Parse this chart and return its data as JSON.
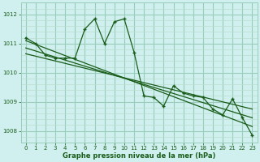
{
  "title": "Graphe pression niveau de la mer (hPa)",
  "bg_color": "#cff0ee",
  "grid_major_color": "#99ccbb",
  "grid_minor_color": "#bbddcc",
  "line_color": "#1a5c1a",
  "xlim": [
    -0.5,
    23.5
  ],
  "ylim": [
    1007.6,
    1012.4
  ],
  "yticks": [
    1008,
    1009,
    1010,
    1011,
    1012
  ],
  "yminor_step": 0.2,
  "xticks": [
    0,
    1,
    2,
    3,
    4,
    5,
    6,
    7,
    8,
    9,
    10,
    11,
    12,
    13,
    14,
    15,
    16,
    17,
    18,
    19,
    20,
    21,
    22,
    23
  ],
  "series1": [
    1011.2,
    1011.0,
    1010.6,
    1010.5,
    1010.5,
    1010.5,
    1011.5,
    1011.85,
    1011.0,
    1011.75,
    1011.85,
    1010.7,
    1009.2,
    1009.15,
    1008.85,
    1009.55,
    1009.3,
    1009.2,
    1009.15,
    1008.75,
    1008.55,
    1009.1,
    1008.45,
    1007.85
  ],
  "trend1_x": [
    0,
    23
  ],
  "trend1_y": [
    1011.1,
    1008.15
  ],
  "trend2_x": [
    0,
    23
  ],
  "trend2_y": [
    1010.85,
    1008.45
  ],
  "trend3_x": [
    0,
    23
  ],
  "trend3_y": [
    1010.65,
    1008.75
  ]
}
